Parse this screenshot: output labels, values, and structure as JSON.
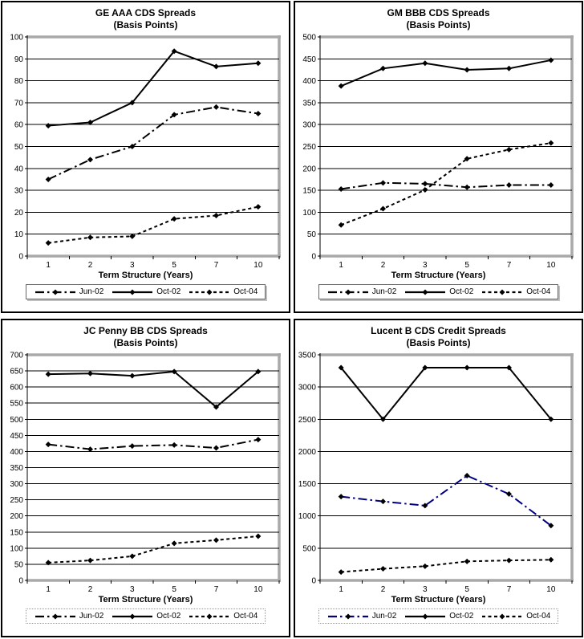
{
  "figure": {
    "xlabel": "Term Structure (Years)",
    "categories": [
      "1",
      "2",
      "3",
      "5",
      "7",
      "10"
    ],
    "grid": "horizontal",
    "legend_position": "bottom",
    "plot_border_color": "#a9a9a9",
    "line_color_default": "#000000",
    "lucent_jun02_color": "#000080"
  },
  "chart_data": [
    {
      "type": "line",
      "title": "GE AAA CDS Spreads",
      "subtitle": "(Basis Points)",
      "xlabel": "Term Structure (Years)",
      "categories": [
        "1",
        "2",
        "3",
        "5",
        "7",
        "10"
      ],
      "ylim": [
        0,
        100
      ],
      "ystep": 10,
      "series": [
        {
          "name": "Jun-02",
          "line_style": "dashdot",
          "color": "#000000",
          "marker": "diamond",
          "values": [
            35,
            44,
            50,
            64.5,
            68,
            65
          ]
        },
        {
          "name": "Oct-02",
          "line_style": "solid",
          "color": "#000000",
          "marker": "diamond",
          "values": [
            59.5,
            61,
            70,
            93.5,
            86.5,
            88
          ]
        },
        {
          "name": "Oct-04",
          "line_style": "dashed",
          "color": "#000000",
          "marker": "diamond",
          "values": [
            6,
            8.5,
            9,
            17,
            18.5,
            22.5
          ]
        }
      ]
    },
    {
      "type": "line",
      "title": "GM BBB CDS Spreads",
      "subtitle": "(Basis Points)",
      "xlabel": "Term Structure (Years)",
      "categories": [
        "1",
        "2",
        "3",
        "5",
        "7",
        "10"
      ],
      "ylim": [
        0,
        500
      ],
      "ystep": 50,
      "series": [
        {
          "name": "Jun-02",
          "line_style": "dashdot",
          "color": "#000000",
          "marker": "diamond",
          "values": [
            153,
            167,
            165,
            157,
            162,
            162
          ]
        },
        {
          "name": "Oct-02",
          "line_style": "solid",
          "color": "#000000",
          "marker": "diamond",
          "values": [
            388,
            428,
            440,
            425,
            428,
            447
          ]
        },
        {
          "name": "Oct-04",
          "line_style": "dashed",
          "color": "#000000",
          "marker": "diamond",
          "values": [
            71,
            108,
            151,
            222,
            243,
            258
          ]
        }
      ]
    },
    {
      "type": "line",
      "title": "JC Penny BB CDS Spreads",
      "subtitle": "(Basis Points)",
      "xlabel": "Term Structure (Years)",
      "categories": [
        "1",
        "2",
        "3",
        "5",
        "7",
        "10"
      ],
      "ylim": [
        0,
        700
      ],
      "ystep": 50,
      "series": [
        {
          "name": "Jun-02",
          "line_style": "dashdot",
          "color": "#000000",
          "marker": "diamond",
          "values": [
            422,
            407,
            417,
            420,
            411,
            437
          ]
        },
        {
          "name": "Oct-02",
          "line_style": "solid",
          "color": "#000000",
          "marker": "diamond",
          "values": [
            640,
            642,
            635,
            648,
            538,
            648
          ]
        },
        {
          "name": "Oct-04",
          "line_style": "dashed",
          "color": "#000000",
          "marker": "diamond",
          "values": [
            55,
            62,
            75,
            115,
            125,
            137
          ]
        }
      ]
    },
    {
      "type": "line",
      "title": "Lucent B CDS Credit Spreads",
      "subtitle": "(Basis Points)",
      "xlabel": "Term Structure (Years)",
      "categories": [
        "1",
        "2",
        "3",
        "5",
        "7",
        "10"
      ],
      "ylim": [
        0,
        3500
      ],
      "ystep": 500,
      "series": [
        {
          "name": "Jun-02",
          "line_style": "dashdot",
          "color": "#000080",
          "marker": "diamond",
          "values": [
            1300,
            1225,
            1160,
            1625,
            1340,
            850
          ]
        },
        {
          "name": "Oct-02",
          "line_style": "solid",
          "color": "#000000",
          "marker": "diamond",
          "values": [
            3300,
            2500,
            3300,
            3300,
            3300,
            2500
          ]
        },
        {
          "name": "Oct-04",
          "line_style": "dashed",
          "color": "#000000",
          "marker": "diamond",
          "values": [
            130,
            180,
            220,
            295,
            310,
            320
          ]
        }
      ]
    }
  ]
}
